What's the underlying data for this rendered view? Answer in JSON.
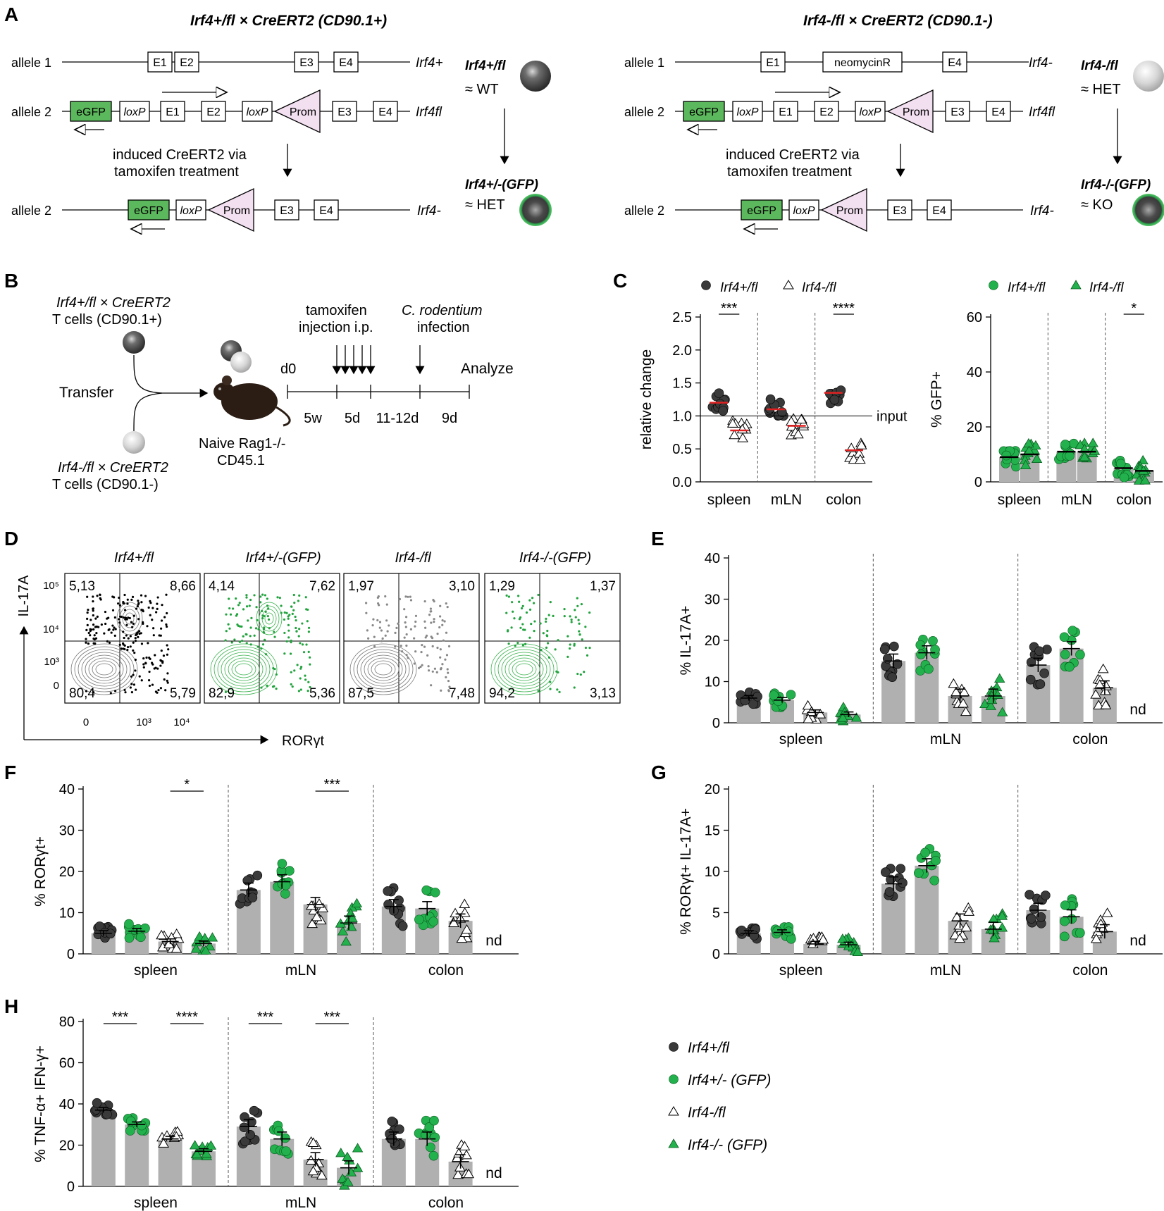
{
  "panels": {
    "A": {
      "label": "A",
      "left_title": "Irf4+/fl × CreERT2 (CD90.1+)",
      "right_title": "Irf4-/fl × CreERT2 (CD90.1-)",
      "allele1": "allele 1",
      "allele2": "allele 2",
      "exons": [
        "E1",
        "E2",
        "E3",
        "E4"
      ],
      "neomycin": "neomycinR",
      "egfp": "eGFP",
      "loxp": "loxP",
      "prom": "Prom",
      "irf4_plus": "Irf4+",
      "irf4_fl": "Irf4fl",
      "irf4_minus": "Irf4-",
      "induced": "induced CreERT2 via",
      "tamoxifen": "tamoxifen treatment",
      "left_geno_top": "Irf4+/fl",
      "left_state_top": "≈ WT",
      "left_geno_bottom": "Irf4+/-(GFP)",
      "left_state_bottom": "≈ HET",
      "right_geno_top": "Irf4-/fl",
      "right_state_top": "≈ HET",
      "right_geno_bottom": "Irf4-/-(GFP)",
      "right_state_bottom": "≈ KO"
    },
    "B": {
      "label": "B",
      "donor1_line1": "Irf4+/fl × CreERT2",
      "donor1_line2": "T cells (CD90.1+)",
      "donor2_line1": "Irf4-/fl × CreERT2",
      "donor2_line2": "T cells (CD90.1-)",
      "transfer": "Transfer",
      "recipient_line1": "Naive Rag1-/-",
      "recipient_line2": "CD45.1",
      "tam1": "tamoxifen",
      "tam2": "injection i.p.",
      "inf1": "C. rodentium",
      "inf2": "infection",
      "d0": "d0",
      "analyze": "Analyze",
      "intervals": [
        "5w",
        "5d",
        "11-12d",
        "9d"
      ]
    },
    "C": {
      "label": "C",
      "legend_left": [
        "Irf4+/fl",
        "Irf4-/fl"
      ],
      "legend_right": [
        "Irf4+/fl",
        "Irf4-/fl"
      ],
      "input": "input",
      "sig_left": [
        "***",
        "****"
      ],
      "sig_right": [
        "*"
      ]
    },
    "D": {
      "label": "D",
      "titles": [
        "Irf4+/fl",
        "Irf4+/-(GFP)",
        "Irf4-/fl",
        "Irf4-/-(GFP)"
      ],
      "quadrants": [
        [
          "5,13",
          "8,66",
          "80,4",
          "5,79"
        ],
        [
          "4,14",
          "7,62",
          "82,9",
          "5,36"
        ],
        [
          "1,97",
          "3,10",
          "87,5",
          "7,48"
        ],
        [
          "1,29",
          "1,37",
          "94,2",
          "3,13"
        ]
      ],
      "yaxis": "IL-17A",
      "xaxis": "RORγt",
      "yticks": [
        "10⁵",
        "10⁴",
        "10³",
        "0"
      ],
      "xticks": [
        "0",
        "10³",
        "10⁴"
      ]
    },
    "E": {
      "label": "E"
    },
    "F": {
      "label": "F"
    },
    "G": {
      "label": "G"
    },
    "H": {
      "label": "H"
    },
    "nd": "nd",
    "legend": [
      "Irf4+/fl",
      "Irf4+/- (GFP)",
      "Irf4-/fl",
      "Irf4-/- (GFP)"
    ]
  },
  "colors": {
    "dark": "#3a3a3a",
    "green": "#22b14c",
    "bar": "#b0b0b0",
    "pink": "#f2dff0",
    "egfp": "#5cb85c"
  },
  "chart_data": [
    {
      "id": "C-left",
      "type": "scatter",
      "ylabel": "relative change",
      "ylim": [
        0,
        2.5
      ],
      "yticks": [
        "0.0",
        "0.5",
        "1.0",
        "1.5",
        "2.0",
        "2.5"
      ],
      "categories": [
        "spleen",
        "mLN",
        "colon"
      ],
      "series": [
        {
          "name": "Irf4+/fl",
          "means": [
            1.2,
            1.1,
            1.35
          ]
        },
        {
          "name": "Irf4-/fl",
          "means": [
            0.78,
            0.85,
            0.48
          ]
        }
      ]
    },
    {
      "id": "C-right",
      "type": "scatter",
      "ylabel": "% GFP+",
      "ylim": [
        0,
        60
      ],
      "yticks": [
        "0",
        "20",
        "40",
        "60"
      ],
      "categories": [
        "spleen",
        "mLN",
        "colon"
      ],
      "series": [
        {
          "name": "Irf4+/fl",
          "means": [
            9,
            11,
            5
          ]
        },
        {
          "name": "Irf4-/fl",
          "means": [
            10,
            11,
            4
          ]
        }
      ]
    },
    {
      "id": "E",
      "type": "bar",
      "ylabel": "% IL-17A+",
      "ylim": [
        0,
        40
      ],
      "yticks": [
        "0",
        "10",
        "20",
        "30",
        "40"
      ],
      "categories": [
        "spleen",
        "mLN",
        "colon"
      ],
      "series": [
        {
          "name": "Irf4+/fl",
          "values": [
            6,
            15,
            14
          ]
        },
        {
          "name": "Irf4+/- (GFP)",
          "values": [
            5.5,
            17,
            18
          ]
        },
        {
          "name": "Irf4-/fl",
          "values": [
            2.5,
            6.5,
            8.5
          ]
        },
        {
          "name": "Irf4-/- (GFP)",
          "values": [
            2,
            6.5,
            null
          ]
        }
      ]
    },
    {
      "id": "F",
      "type": "bar",
      "ylabel": "% RORγt+",
      "ylim": [
        0,
        40
      ],
      "yticks": [
        "0",
        "10",
        "20",
        "30",
        "40"
      ],
      "categories": [
        "spleen",
        "mLN",
        "colon"
      ],
      "series": [
        {
          "name": "Irf4+/fl",
          "values": [
            5,
            15.5,
            11.5
          ]
        },
        {
          "name": "Irf4+/- (GFP)",
          "values": [
            5.5,
            17.5,
            11
          ]
        },
        {
          "name": "Irf4-/fl",
          "values": [
            3,
            12,
            8
          ]
        },
        {
          "name": "Irf4-/- (GFP)",
          "values": [
            2.5,
            7.5,
            null
          ]
        }
      ],
      "significance": [
        {
          "category": "spleen",
          "label": "*"
        },
        {
          "category": "mLN",
          "label": "***"
        }
      ]
    },
    {
      "id": "G",
      "type": "bar",
      "ylabel": "% RORγt+ IL-17A+",
      "ylim": [
        0,
        20
      ],
      "yticks": [
        "0",
        "5",
        "10",
        "15",
        "20"
      ],
      "categories": [
        "spleen",
        "mLN",
        "colon"
      ],
      "series": [
        {
          "name": "Irf4+/fl",
          "values": [
            2.5,
            8.5,
            5.3
          ]
        },
        {
          "name": "Irf4+/- (GFP)",
          "values": [
            2.6,
            10.7,
            4.5
          ]
        },
        {
          "name": "Irf4-/fl",
          "values": [
            1.2,
            4,
            2.7
          ]
        },
        {
          "name": "Irf4-/- (GFP)",
          "values": [
            1.1,
            3,
            null
          ]
        }
      ]
    },
    {
      "id": "H",
      "type": "bar",
      "ylabel": "% TNF-α+ IFN-γ+",
      "ylim": [
        0,
        80
      ],
      "yticks": [
        "0",
        "20",
        "40",
        "60",
        "80"
      ],
      "categories": [
        "spleen",
        "mLN",
        "colon"
      ],
      "series": [
        {
          "name": "Irf4+/fl",
          "values": [
            37,
            29,
            23
          ]
        },
        {
          "name": "Irf4+/- (GFP)",
          "values": [
            30,
            23,
            23
          ]
        },
        {
          "name": "Irf4-/fl",
          "values": [
            23,
            13,
            12
          ]
        },
        {
          "name": "Irf4-/- (GFP)",
          "values": [
            17,
            9,
            null
          ]
        }
      ],
      "significance": [
        {
          "category": "spleen",
          "label": "***"
        },
        {
          "category": "spleen",
          "label": "****"
        },
        {
          "category": "mLN",
          "label": "***"
        },
        {
          "category": "mLN",
          "label": "***"
        }
      ]
    }
  ]
}
